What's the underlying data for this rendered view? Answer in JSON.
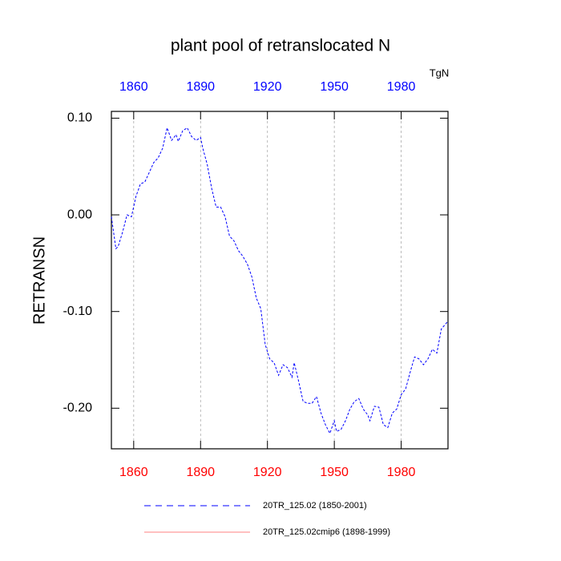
{
  "chart_data": {
    "type": "line",
    "title": "plant pool of retranslocated N",
    "units": "TgN",
    "y_label": "RETRANSN",
    "xlim": [
      1850,
      2001
    ],
    "xticks": [
      1860,
      1890,
      1920,
      1950,
      1980
    ],
    "ylim": [
      -0.242,
      0.107
    ],
    "yticks": [
      {
        "value": 0.1,
        "label": "0.10"
      },
      {
        "value": 0,
        "label": "0.00"
      },
      {
        "value": -0.1,
        "label": "-0.10"
      },
      {
        "value": -0.2,
        "label": "-0.20"
      }
    ],
    "top_axis_color": "#0000ff",
    "bottom_axis_color": "#ff0000",
    "grid": true,
    "series": [
      {
        "name": "20TR_125.02 (1850-2001)",
        "color": "#0000ff",
        "dashed": true,
        "x": [
          1850,
          1852,
          1853,
          1855,
          1857,
          1859,
          1861,
          1863,
          1865,
          1867,
          1869,
          1871,
          1873,
          1875,
          1877,
          1879,
          1880,
          1882,
          1884,
          1886,
          1888,
          1890,
          1891,
          1893,
          1895,
          1897,
          1899,
          1901,
          1903,
          1905,
          1907,
          1909,
          1911,
          1913,
          1915,
          1917,
          1919,
          1921,
          1923,
          1925,
          1927,
          1929,
          1931,
          1932,
          1934,
          1936,
          1938,
          1940,
          1942,
          1944,
          1946,
          1948,
          1950,
          1951,
          1953,
          1955,
          1957,
          1959,
          1961,
          1963,
          1965,
          1966,
          1968,
          1970,
          1972,
          1974,
          1976,
          1978,
          1980,
          1982,
          1984,
          1986,
          1988,
          1990,
          1992,
          1994,
          1996,
          1998,
          2001
        ],
        "values": [
          -0.002,
          -0.035,
          -0.033,
          -0.018,
          0.0,
          -0.002,
          0.019,
          0.032,
          0.034,
          0.044,
          0.054,
          0.059,
          0.069,
          0.09,
          0.077,
          0.083,
          0.076,
          0.087,
          0.09,
          0.081,
          0.077,
          0.08,
          0.069,
          0.052,
          0.027,
          0.008,
          0.008,
          -0.002,
          -0.022,
          -0.027,
          -0.037,
          -0.043,
          -0.051,
          -0.064,
          -0.086,
          -0.097,
          -0.134,
          -0.149,
          -0.153,
          -0.166,
          -0.155,
          -0.158,
          -0.168,
          -0.153,
          -0.172,
          -0.193,
          -0.195,
          -0.195,
          -0.188,
          -0.205,
          -0.217,
          -0.226,
          -0.213,
          -0.224,
          -0.222,
          -0.213,
          -0.201,
          -0.193,
          -0.19,
          -0.201,
          -0.207,
          -0.213,
          -0.198,
          -0.199,
          -0.217,
          -0.22,
          -0.205,
          -0.201,
          -0.186,
          -0.18,
          -0.163,
          -0.147,
          -0.149,
          -0.155,
          -0.149,
          -0.139,
          -0.143,
          -0.118,
          -0.11
        ]
      },
      {
        "name": "20TR_125.02cmip6 (1898-1999)",
        "color": "#ff8080",
        "dashed": false,
        "x": [],
        "values": []
      }
    ]
  }
}
